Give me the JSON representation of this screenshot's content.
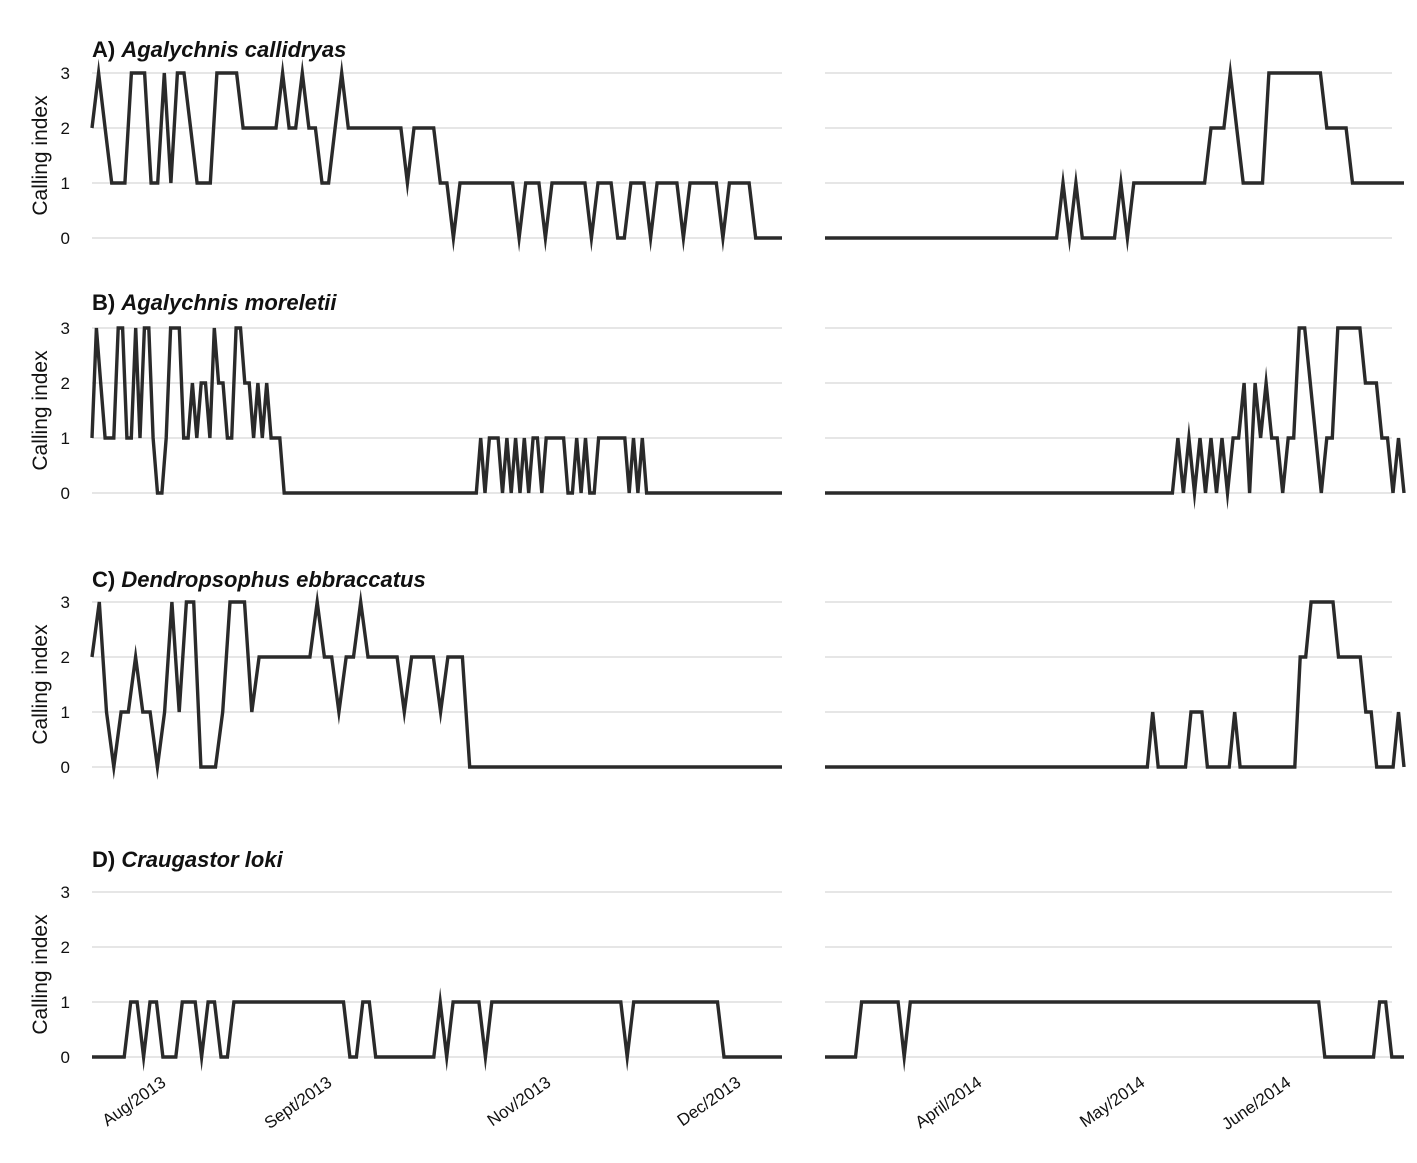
{
  "chart_data": {
    "type": "line",
    "ylabel": "Calling index",
    "yticks": [
      "0",
      "1",
      "2",
      "3"
    ],
    "ylim": [
      0,
      3
    ],
    "x_tick_labels": {
      "season_2013": [
        "Aug/2013",
        "Sept/2013",
        "Nov/2013",
        "Dec/2013"
      ],
      "season_2014": [
        "April/2014",
        "May/2014",
        "June/2014"
      ]
    },
    "panels": [
      {
        "letter": "A)",
        "species": "Agalychnis callidryas",
        "season_2013": [
          2,
          3,
          2,
          1,
          1,
          1,
          3,
          3,
          3,
          1,
          1,
          3,
          1,
          3,
          3,
          2,
          1,
          1,
          1,
          3,
          3,
          3,
          3,
          2,
          2,
          2,
          2,
          2,
          2,
          3,
          2,
          2,
          3,
          2,
          2,
          1,
          1,
          2,
          3,
          2,
          2,
          2,
          2,
          2,
          2,
          2,
          2,
          2,
          1,
          2,
          2,
          2,
          2,
          1,
          1,
          0,
          1,
          1,
          1,
          1,
          1,
          1,
          1,
          1,
          1,
          0,
          1,
          1,
          1,
          0,
          1,
          1,
          1,
          1,
          1,
          1,
          0,
          1,
          1,
          1,
          0,
          0,
          1,
          1,
          1,
          0,
          1,
          1,
          1,
          1,
          0,
          1,
          1,
          1,
          1,
          1,
          0,
          1,
          1,
          1,
          1,
          0,
          0,
          0,
          0,
          0
        ],
        "season_2014": [
          0,
          0,
          0,
          0,
          0,
          0,
          0,
          0,
          0,
          0,
          0,
          0,
          0,
          0,
          0,
          0,
          0,
          0,
          0,
          0,
          0,
          0,
          0,
          0,
          0,
          0,
          0,
          0,
          0,
          0,
          0,
          0,
          0,
          0,
          0,
          0,
          0,
          1,
          0,
          1,
          0,
          0,
          0,
          0,
          0,
          0,
          1,
          0,
          1,
          1,
          1,
          1,
          1,
          1,
          1,
          1,
          1,
          1,
          1,
          1,
          2,
          2,
          2,
          3,
          2,
          1,
          1,
          1,
          1,
          3,
          3,
          3,
          3,
          3,
          3,
          3,
          3,
          3,
          2,
          2,
          2,
          2,
          1,
          1,
          1,
          1,
          1,
          1,
          1,
          1,
          1
        ]
      },
      {
        "letter": "B)",
        "species": "Agalychnis moreletii",
        "season_2013": [
          1,
          3,
          2,
          1,
          1,
          1,
          3,
          3,
          1,
          1,
          3,
          1,
          3,
          3,
          1,
          0,
          0,
          1,
          3,
          3,
          3,
          1,
          1,
          2,
          1,
          2,
          2,
          1,
          3,
          2,
          2,
          1,
          1,
          3,
          3,
          2,
          2,
          1,
          2,
          1,
          2,
          1,
          1,
          1,
          0,
          0,
          0,
          0,
          0,
          0,
          0,
          0,
          0,
          0,
          0,
          0,
          0,
          0,
          0,
          0,
          0,
          0,
          0,
          0,
          0,
          0,
          0,
          0,
          0,
          0,
          0,
          0,
          0,
          0,
          0,
          0,
          0,
          0,
          0,
          0,
          0,
          0,
          0,
          0,
          0,
          0,
          0,
          0,
          0,
          1,
          0,
          1,
          1,
          1,
          0,
          1,
          0,
          1,
          0,
          1,
          0,
          1,
          1,
          0,
          1,
          1,
          1,
          1,
          1,
          0,
          0,
          1,
          0,
          1,
          0,
          0,
          1,
          1,
          1,
          1,
          1,
          1,
          1,
          0,
          1,
          0,
          1,
          0,
          0,
          0,
          0,
          0,
          0,
          0,
          0,
          0,
          0,
          0,
          0,
          0,
          0,
          0,
          0,
          0,
          0,
          0,
          0,
          0,
          0,
          0,
          0,
          0,
          0,
          0,
          0,
          0,
          0,
          0,
          0
        ],
        "season_2014": [
          0,
          0,
          0,
          0,
          0,
          0,
          0,
          0,
          0,
          0,
          0,
          0,
          0,
          0,
          0,
          0,
          0,
          0,
          0,
          0,
          0,
          0,
          0,
          0,
          0,
          0,
          0,
          0,
          0,
          0,
          0,
          0,
          0,
          0,
          0,
          0,
          0,
          0,
          0,
          0,
          0,
          0,
          0,
          0,
          0,
          0,
          0,
          0,
          0,
          0,
          0,
          0,
          0,
          0,
          0,
          0,
          0,
          0,
          0,
          0,
          0,
          0,
          0,
          0,
          1,
          0,
          1,
          0,
          1,
          0,
          1,
          0,
          1,
          0,
          1,
          1,
          2,
          0,
          2,
          1,
          2,
          1,
          1,
          0,
          1,
          1,
          3,
          3,
          2,
          1,
          0,
          1,
          1,
          3,
          3,
          3,
          3,
          3,
          2,
          2,
          2,
          1,
          1,
          0,
          1,
          0
        ]
      },
      {
        "letter": "C)",
        "species": "Dendropsophus ebbraccatus",
        "season_2013": [
          2,
          3,
          1,
          0,
          1,
          1,
          2,
          1,
          1,
          0,
          1,
          3,
          1,
          3,
          3,
          0,
          0,
          0,
          1,
          3,
          3,
          3,
          1,
          2,
          2,
          2,
          2,
          2,
          2,
          2,
          2,
          3,
          2,
          2,
          1,
          2,
          2,
          3,
          2,
          2,
          2,
          2,
          2,
          1,
          2,
          2,
          2,
          2,
          1,
          2,
          2,
          2,
          0,
          0,
          0,
          0,
          0,
          0,
          0,
          0,
          0,
          0,
          0,
          0,
          0,
          0,
          0,
          0,
          0,
          0,
          0,
          0,
          0,
          0,
          0,
          0,
          0,
          0,
          0,
          0,
          0,
          0,
          0,
          0,
          0,
          0,
          0,
          0,
          0,
          0,
          0,
          0,
          0,
          0,
          0,
          0
        ],
        "season_2014": [
          0,
          0,
          0,
          0,
          0,
          0,
          0,
          0,
          0,
          0,
          0,
          0,
          0,
          0,
          0,
          0,
          0,
          0,
          0,
          0,
          0,
          0,
          0,
          0,
          0,
          0,
          0,
          0,
          0,
          0,
          0,
          0,
          0,
          0,
          0,
          0,
          0,
          0,
          0,
          0,
          0,
          0,
          0,
          0,
          0,
          0,
          0,
          0,
          0,
          0,
          0,
          0,
          0,
          0,
          0,
          0,
          0,
          0,
          0,
          0,
          1,
          0,
          0,
          0,
          0,
          0,
          0,
          1,
          1,
          1,
          0,
          0,
          0,
          0,
          0,
          1,
          0,
          0,
          0,
          0,
          0,
          0,
          0,
          0,
          0,
          0,
          0,
          2,
          2,
          3,
          3,
          3,
          3,
          3,
          2,
          2,
          2,
          2,
          2,
          1,
          1,
          0,
          0,
          0,
          0,
          1,
          0
        ]
      },
      {
        "letter": "D)",
        "species": "Craugastor loki",
        "season_2013": [
          0,
          0,
          0,
          0,
          0,
          0,
          1,
          1,
          0,
          1,
          1,
          0,
          0,
          0,
          1,
          1,
          1,
          0,
          1,
          1,
          0,
          0,
          1,
          1,
          1,
          1,
          1,
          1,
          1,
          1,
          1,
          1,
          1,
          1,
          1,
          1,
          1,
          1,
          1,
          1,
          0,
          0,
          1,
          1,
          0,
          0,
          0,
          0,
          0,
          0,
          0,
          0,
          0,
          0,
          1,
          0,
          1,
          1,
          1,
          1,
          1,
          0,
          1,
          1,
          1,
          1,
          1,
          1,
          1,
          1,
          1,
          1,
          1,
          1,
          1,
          1,
          1,
          1,
          1,
          1,
          1,
          1,
          1,
          0,
          1,
          1,
          1,
          1,
          1,
          1,
          1,
          1,
          1,
          1,
          1,
          1,
          1,
          1,
          0,
          0,
          0,
          0,
          0,
          0,
          0,
          0,
          0,
          0
        ],
        "season_2014": [
          0,
          0,
          0,
          0,
          0,
          0,
          1,
          1,
          1,
          1,
          1,
          1,
          1,
          0,
          1,
          1,
          1,
          1,
          1,
          1,
          1,
          1,
          1,
          1,
          1,
          1,
          1,
          1,
          1,
          1,
          1,
          1,
          1,
          1,
          1,
          1,
          1,
          1,
          1,
          1,
          1,
          1,
          1,
          1,
          1,
          1,
          1,
          1,
          1,
          1,
          1,
          1,
          1,
          1,
          1,
          1,
          1,
          1,
          1,
          1,
          1,
          1,
          1,
          1,
          1,
          1,
          1,
          1,
          1,
          1,
          1,
          1,
          1,
          1,
          1,
          1,
          1,
          1,
          1,
          1,
          1,
          1,
          0,
          0,
          0,
          0,
          0,
          0,
          0,
          0,
          0,
          1,
          1,
          0,
          0,
          0
        ]
      }
    ]
  }
}
